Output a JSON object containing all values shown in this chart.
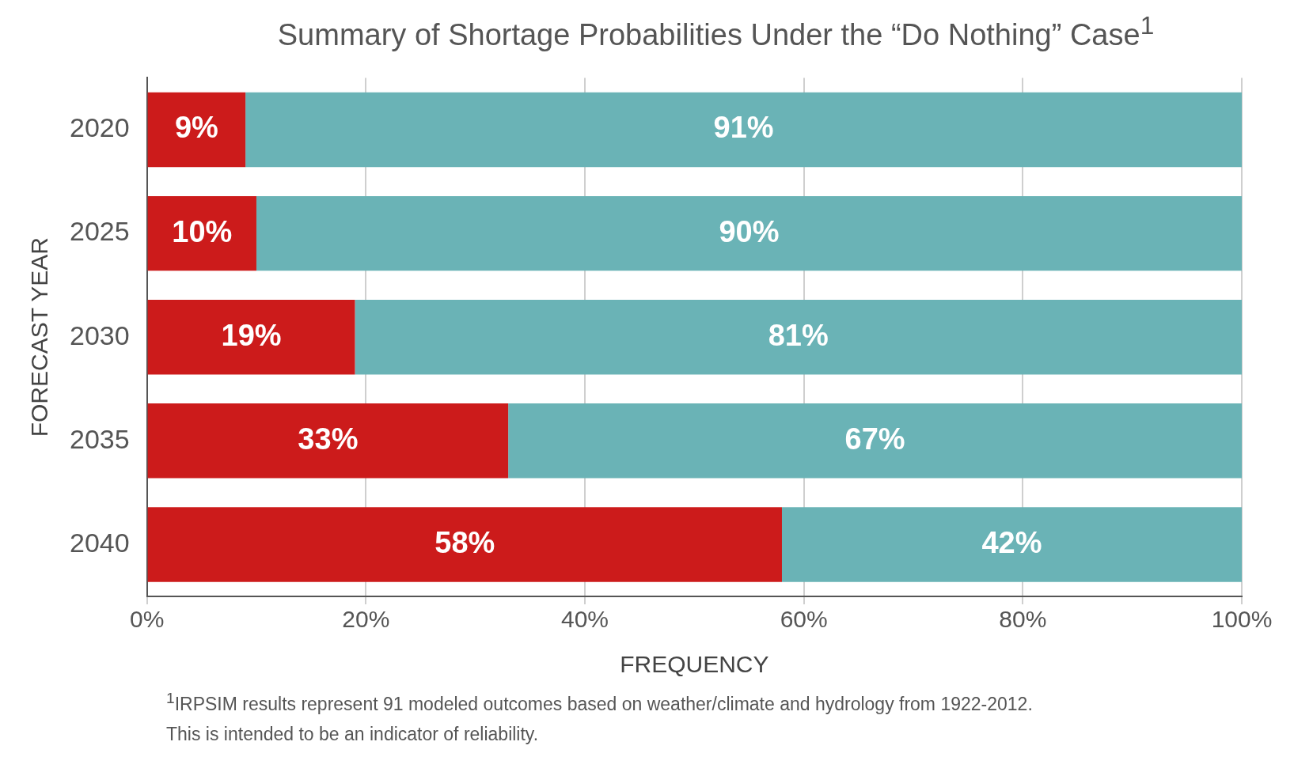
{
  "chart_data": {
    "type": "bar",
    "orientation": "horizontal",
    "stacked": true,
    "title": "Summary of Shortage Probabilities Under the “Do Nothing” Case$^{1}$",
    "xlabel": "FREQUENCY",
    "ylabel": "FORECAST YEAR",
    "categories": [
      "2020",
      "2025",
      "2030",
      "2035",
      "2040"
    ],
    "series": [
      {
        "color": "#cc1b1b",
        "values": [
          9,
          10,
          19,
          33,
          58
        ],
        "value_labels": [
          "9%",
          "10%",
          "19%",
          "33%",
          "58%"
        ]
      },
      {
        "color": "#6ab3b6",
        "values": [
          91,
          90,
          81,
          67,
          42
        ],
        "value_labels": [
          "91%",
          "90%",
          "81%",
          "67%",
          "42%"
        ]
      }
    ],
    "xlim": [
      0,
      100
    ],
    "xticks": [
      {
        "value": 0,
        "label": "0%"
      },
      {
        "value": 20,
        "label": "20%"
      },
      {
        "value": 40,
        "label": "40%"
      },
      {
        "value": 60,
        "label": "60%"
      },
      {
        "value": 80,
        "label": "80%"
      },
      {
        "value": 100,
        "label": "100%"
      }
    ],
    "grid": "x",
    "annotations": [
      "$^{1}$IRPSIM results represent 91 modeled outcomes based on weather/climate and hydrology from 1922-2012.",
      "This is intended to be an indicator of reliability."
    ]
  }
}
